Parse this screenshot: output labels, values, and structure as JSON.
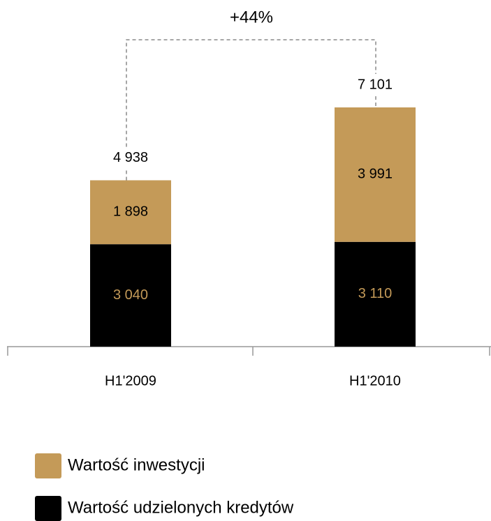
{
  "chart_data": {
    "type": "stacked_bar",
    "categories": [
      "H1'2009",
      "H1'2010"
    ],
    "series": [
      {
        "name": "Wartość udzielonych kredytów",
        "color": "#000000",
        "label_color": "#c49a58",
        "values": [
          3040,
          3110
        ],
        "value_labels": [
          "3 040",
          "3 110"
        ]
      },
      {
        "name": "Wartość inwestycji",
        "color": "#c49a58",
        "label_color": "#000000",
        "values": [
          1898,
          3991
        ],
        "value_labels": [
          "1 898",
          "3 991"
        ]
      }
    ],
    "totals": [
      4938,
      7101
    ],
    "total_labels": [
      "4 938",
      "7 101"
    ],
    "annotation": "+44%"
  }
}
